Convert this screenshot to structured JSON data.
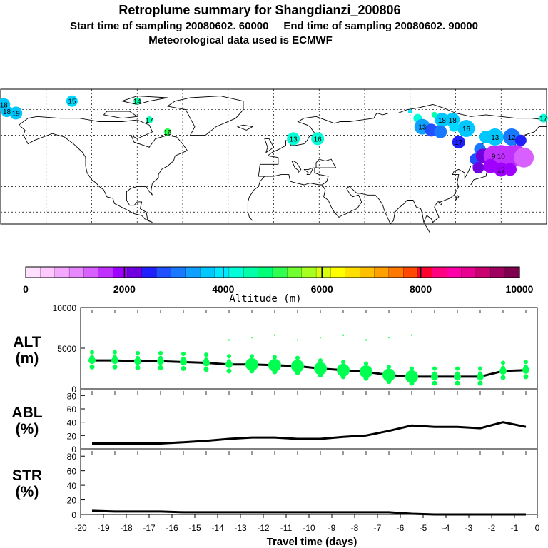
{
  "header": {
    "title": "Retroplume summary for Shangdianzi_200806",
    "line2": "Start time of sampling 20080602. 60000     End time of sampling 20080602. 90000",
    "line3": "Meteorological data used is ECMWF"
  },
  "colorbar": {
    "label": "Altitude (m)",
    "ticks": [
      "0",
      "2000",
      "4000",
      "6000",
      "8000",
      "10000"
    ],
    "colors": [
      "#ffe0ff",
      "#ffc8ff",
      "#f4a8ff",
      "#e888ff",
      "#d860ff",
      "#c030ff",
      "#a000ff",
      "#7000e0",
      "#2020ff",
      "#2050ff",
      "#1878ff",
      "#10a0ff",
      "#00c8ff",
      "#00e8ff",
      "#00ffd8",
      "#00ffa8",
      "#00ff78",
      "#30ff50",
      "#70ff30",
      "#a8ff20",
      "#d8ff10",
      "#ffff00",
      "#ffe000",
      "#ffc000",
      "#ffa000",
      "#ff7800",
      "#ff4800",
      "#ff0030",
      "#ff0080",
      "#ff00a8",
      "#e80090",
      "#c80070",
      "#a00060",
      "#800050"
    ]
  },
  "map": {
    "labels": [
      {
        "text": "18",
        "color": "#00c8ff",
        "lon": -178,
        "lat": 78
      },
      {
        "text": "18",
        "color": "#00c8ff",
        "lon": -176,
        "lat": 74
      },
      {
        "text": "19",
        "color": "#00c8ff",
        "lon": -170,
        "lat": 73
      },
      {
        "text": "15",
        "color": "#00d8ff",
        "lon": -133,
        "lat": 80
      },
      {
        "text": "14",
        "color": "#00ffa8",
        "lon": -90,
        "lat": 80
      },
      {
        "text": "17",
        "color": "#00ffb0",
        "lon": -82,
        "lat": 69
      },
      {
        "text": "16",
        "color": "#30ff50",
        "lon": -70,
        "lat": 62
      },
      {
        "text": "13",
        "color": "#00ffd8",
        "lon": 13,
        "lat": 58
      },
      {
        "text": "16",
        "color": "#00ffd8",
        "lon": 29,
        "lat": 58
      },
      {
        "text": "13",
        "color": "#10a0ff",
        "lon": 98,
        "lat": 65
      },
      {
        "text": "18",
        "color": "#00c8ff",
        "lon": 111,
        "lat": 69
      },
      {
        "text": "18",
        "color": "#00c8ff",
        "lon": 118,
        "lat": 69
      },
      {
        "text": "16",
        "color": "#00c8ff",
        "lon": 127,
        "lat": 64
      },
      {
        "text": "17",
        "color": "#2020ff",
        "lon": 122,
        "lat": 56
      },
      {
        "text": "13",
        "color": "#00c8ff",
        "lon": 146,
        "lat": 59
      },
      {
        "text": "12",
        "color": "#1878ff",
        "lon": 157,
        "lat": 59
      },
      {
        "text": "17",
        "color": "#00ffd8",
        "lon": 178,
        "lat": 70
      },
      {
        "text": "9",
        "color": "#c030ff",
        "lon": 145,
        "lat": 48
      },
      {
        "text": "10",
        "color": "#c030ff",
        "lon": 150,
        "lat": 48
      },
      {
        "text": "12",
        "color": "#a000ff",
        "lon": 150,
        "lat": 40
      }
    ]
  },
  "chart_data": [
    {
      "type": "scatter+line",
      "panel": "ALT (m)",
      "ylabel": "ALT\n(m)",
      "ylabel_line1": "ALT",
      "ylabel_line2": "(m)",
      "ylim": [
        0,
        10000
      ],
      "yticks": [
        "10000",
        "5000",
        "0"
      ],
      "line_x": [
        -19.5,
        -18.5,
        -17.5,
        -16.5,
        -15.5,
        -14.5,
        -13.5,
        -12.5,
        -11.5,
        -10.5,
        -9.5,
        -8.5,
        -7.5,
        -6.5,
        -5.5,
        -4.5,
        -3.5,
        -2.5,
        -1.5,
        -0.5
      ],
      "line_y": [
        3500,
        3500,
        3400,
        3400,
        3300,
        3200,
        3000,
        3000,
        2900,
        2800,
        2500,
        2300,
        2100,
        1700,
        1500,
        1500,
        1500,
        1500,
        2200,
        2300
      ]
    },
    {
      "type": "line",
      "panel": "ABL (%)",
      "ylabel_line1": "ABL",
      "ylabel_line2": "(%)",
      "ylim": [
        0,
        90
      ],
      "yticks": [
        "80",
        "60",
        "40",
        "20",
        "0"
      ],
      "x": [
        -19.5,
        -18.5,
        -17.5,
        -16.5,
        -15.5,
        -14.5,
        -13.5,
        -12.5,
        -11.5,
        -10.5,
        -9.5,
        -8.5,
        -7.5,
        -6.5,
        -5.5,
        -4.5,
        -3.5,
        -2.5,
        -1.5,
        -0.5
      ],
      "y": [
        8,
        8,
        8,
        8,
        10,
        12,
        15,
        17,
        17,
        15,
        15,
        18,
        20,
        27,
        35,
        33,
        33,
        31,
        40,
        33
      ]
    },
    {
      "type": "line",
      "panel": "STR (%)",
      "ylabel_line1": "STR",
      "ylabel_line2": "(%)",
      "ylim": [
        0,
        90
      ],
      "yticks": [
        "80",
        "60",
        "40",
        "20",
        "0"
      ],
      "x": [
        -19.5,
        -18.5,
        -17.5,
        -16.5,
        -15.5,
        -14.5,
        -13.5,
        -12.5,
        -11.5,
        -10.5,
        -9.5,
        -8.5,
        -7.5,
        -6.5,
        -5.5,
        -4.5,
        -3.5,
        -2.5,
        -1.5,
        -0.5
      ],
      "y": [
        5,
        4,
        4,
        4,
        3,
        3,
        3,
        3,
        3,
        3,
        3,
        3,
        3,
        3,
        1,
        0,
        0,
        0,
        0,
        0
      ]
    }
  ],
  "xaxis": {
    "label": "Travel time (days)",
    "xlim": [
      -20,
      0
    ],
    "ticks": [
      "-20",
      "-19",
      "-18",
      "-17",
      "-16",
      "-15",
      "-14",
      "-13",
      "-12",
      "-11",
      "-10",
      "-9",
      "-8",
      "-7",
      "-6",
      "-5",
      "-4",
      "-3",
      "-2",
      "-1",
      "0"
    ]
  }
}
